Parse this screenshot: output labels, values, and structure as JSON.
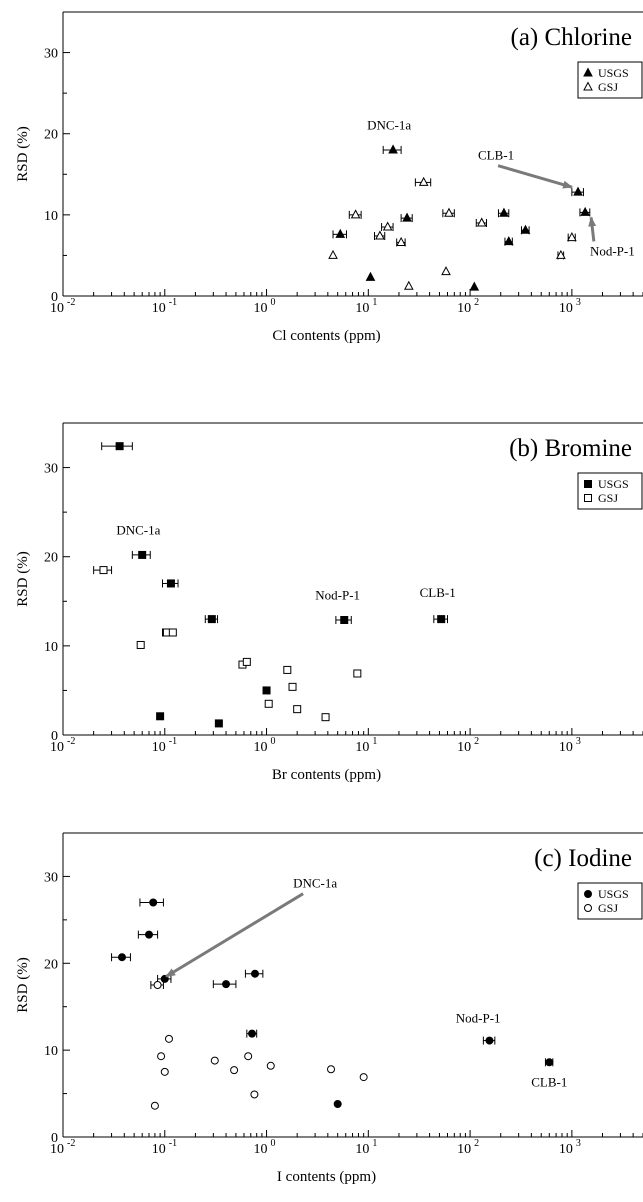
{
  "chart_data": [
    {
      "type": "scatter",
      "title": "(a) Chlorine",
      "xlabel": "Cl contents (ppm)",
      "ylabel": "RSD (%)",
      "xscale": "log",
      "xlim": [
        0.01,
        5000
      ],
      "ylim": [
        0,
        35
      ],
      "xticks": [
        {
          "v": 0.01,
          "e": "-2"
        },
        {
          "v": 0.1,
          "e": "-1"
        },
        {
          "v": 1,
          "e": "0"
        },
        {
          "v": 10,
          "e": "1"
        },
        {
          "v": 100,
          "e": "2"
        },
        {
          "v": 1000,
          "e": "3"
        }
      ],
      "yticks": [
        0,
        10,
        20,
        30
      ],
      "tick_base": "10",
      "legend": {
        "position": "top-right",
        "entries": [
          "USGS",
          "GSJ"
        ]
      },
      "markers": {
        "USGS": "triangle-filled",
        "GSJ": "triangle-open"
      },
      "series": [
        {
          "name": "USGS",
          "points": [
            {
              "x": 5.3,
              "y": 7.6,
              "e": 0.8
            },
            {
              "x": 10.5,
              "y": 2.3
            },
            {
              "x": 17.5,
              "y": 18.0,
              "e": 3.5
            },
            {
              "x": 24,
              "y": 9.6,
              "e": 3
            },
            {
              "x": 110,
              "y": 1.1
            },
            {
              "x": 215,
              "y": 10.2,
              "e": 25
            },
            {
              "x": 240,
              "y": 6.7,
              "e": 20
            },
            {
              "x": 350,
              "y": 8.1,
              "e": 30
            },
            {
              "x": 1150,
              "y": 12.8,
              "e": 150
            },
            {
              "x": 1350,
              "y": 10.3,
              "e": 150
            }
          ]
        },
        {
          "name": "GSJ",
          "points": [
            {
              "x": 4.5,
              "y": 5.0
            },
            {
              "x": 7.5,
              "y": 10.0,
              "e": 1
            },
            {
              "x": 13,
              "y": 7.4,
              "e": 1.5
            },
            {
              "x": 15.5,
              "y": 8.5,
              "e": 2
            },
            {
              "x": 21,
              "y": 6.6,
              "e": 2
            },
            {
              "x": 25,
              "y": 1.2
            },
            {
              "x": 35,
              "y": 14.0,
              "e": 6
            },
            {
              "x": 58,
              "y": 3.0
            },
            {
              "x": 62,
              "y": 10.2,
              "e": 8
            },
            {
              "x": 130,
              "y": 9.0,
              "e": 15
            },
            {
              "x": 780,
              "y": 5.0,
              "e": 50
            },
            {
              "x": 1000,
              "y": 7.2,
              "e": 80
            }
          ]
        }
      ],
      "annotations": [
        {
          "text": "DNC-1a",
          "x": 17.5,
          "y": 18.0,
          "lx": 16,
          "ly": 20.5
        },
        {
          "text": "CLB-1",
          "x": 1150,
          "y": 12.8,
          "lx": 180,
          "ly": 16.8,
          "arrow": true
        },
        {
          "text": "Nod-P-1",
          "x": 1350,
          "y": 10.3,
          "lx": 2500,
          "ly": 5.0,
          "arrow": true
        }
      ]
    },
    {
      "type": "scatter",
      "title": "(b) Bromine",
      "xlabel": "Br contents (ppm)",
      "ylabel": "RSD (%)",
      "xscale": "log",
      "xlim": [
        0.01,
        5000
      ],
      "ylim": [
        0,
        35
      ],
      "xticks": [
        {
          "v": 0.01,
          "e": "-2"
        },
        {
          "v": 0.1,
          "e": "-1"
        },
        {
          "v": 1,
          "e": "0"
        },
        {
          "v": 10,
          "e": "1"
        },
        {
          "v": 100,
          "e": "2"
        },
        {
          "v": 1000,
          "e": "3"
        }
      ],
      "yticks": [
        0,
        10,
        20,
        30
      ],
      "tick_base": "10",
      "legend": {
        "position": "top-right",
        "entries": [
          "USGS",
          "GSJ"
        ]
      },
      "markers": {
        "USGS": "square-filled",
        "GSJ": "square-open"
      },
      "series": [
        {
          "name": "USGS",
          "points": [
            {
              "x": 0.036,
              "y": 32.4,
              "e": 0.012
            },
            {
              "x": 0.06,
              "y": 20.2,
              "e": 0.012
            },
            {
              "x": 0.09,
              "y": 2.1
            },
            {
              "x": 0.115,
              "y": 17.0,
              "e": 0.02
            },
            {
              "x": 0.29,
              "y": 13.0,
              "e": 0.04
            },
            {
              "x": 0.34,
              "y": 1.3
            },
            {
              "x": 1.0,
              "y": 5.0
            },
            {
              "x": 5.8,
              "y": 12.9,
              "e": 1.0
            },
            {
              "x": 52,
              "y": 13.0,
              "e": 8
            }
          ]
        },
        {
          "name": "GSJ",
          "points": [
            {
              "x": 0.025,
              "y": 18.5,
              "e": 0.005
            },
            {
              "x": 0.058,
              "y": 10.1
            },
            {
              "x": 0.105,
              "y": 11.5,
              "e": 0.01
            },
            {
              "x": 0.12,
              "y": 11.5
            },
            {
              "x": 0.58,
              "y": 7.9
            },
            {
              "x": 0.64,
              "y": 8.2
            },
            {
              "x": 1.05,
              "y": 3.5
            },
            {
              "x": 1.6,
              "y": 7.3
            },
            {
              "x": 1.8,
              "y": 5.4
            },
            {
              "x": 2.0,
              "y": 2.9
            },
            {
              "x": 3.8,
              "y": 2.0
            },
            {
              "x": 7.8,
              "y": 6.9
            }
          ]
        }
      ],
      "annotations": [
        {
          "text": "DNC-1a",
          "x": 0.06,
          "y": 20.2,
          "lx": 0.055,
          "ly": 22.5
        },
        {
          "text": "Nod-P-1",
          "x": 5.8,
          "y": 12.9,
          "lx": 5.0,
          "ly": 15.2
        },
        {
          "text": "CLB-1",
          "x": 52,
          "y": 13.0,
          "lx": 48,
          "ly": 15.5
        }
      ]
    },
    {
      "type": "scatter",
      "title": "(c) Iodine",
      "xlabel": "I contents (ppm)",
      "ylabel": "RSD (%)",
      "xscale": "log",
      "xlim": [
        0.01,
        5000
      ],
      "ylim": [
        0,
        35
      ],
      "xticks": [
        {
          "v": 0.01,
          "e": "-2"
        },
        {
          "v": 0.1,
          "e": "-1"
        },
        {
          "v": 1,
          "e": "0"
        },
        {
          "v": 10,
          "e": "1"
        },
        {
          "v": 100,
          "e": "2"
        },
        {
          "v": 1000,
          "e": "3"
        }
      ],
      "yticks": [
        0,
        10,
        20,
        30
      ],
      "tick_base": "10",
      "legend": {
        "position": "top-right",
        "entries": [
          "USGS",
          "GSJ"
        ]
      },
      "markers": {
        "USGS": "circle-filled",
        "GSJ": "circle-open"
      },
      "series": [
        {
          "name": "USGS",
          "points": [
            {
              "x": 0.038,
              "y": 20.7,
              "e": 0.008
            },
            {
              "x": 0.07,
              "y": 23.3,
              "e": 0.015
            },
            {
              "x": 0.077,
              "y": 27.0,
              "e": 0.02
            },
            {
              "x": 0.1,
              "y": 18.2,
              "e": 0.015
            },
            {
              "x": 0.4,
              "y": 17.6,
              "e": 0.1
            },
            {
              "x": 0.72,
              "y": 11.9,
              "e": 0.08
            },
            {
              "x": 0.77,
              "y": 18.8,
              "e": 0.15
            },
            {
              "x": 5.0,
              "y": 3.8
            },
            {
              "x": 155,
              "y": 11.1,
              "e": 20
            },
            {
              "x": 600,
              "y": 8.6,
              "e": 50
            }
          ]
        },
        {
          "name": "GSJ",
          "points": [
            {
              "x": 0.08,
              "y": 3.6
            },
            {
              "x": 0.085,
              "y": 17.5,
              "e": 0.012
            },
            {
              "x": 0.092,
              "y": 9.3
            },
            {
              "x": 0.1,
              "y": 7.5
            },
            {
              "x": 0.11,
              "y": 11.3
            },
            {
              "x": 0.31,
              "y": 8.8
            },
            {
              "x": 0.48,
              "y": 7.7
            },
            {
              "x": 0.66,
              "y": 9.3
            },
            {
              "x": 0.76,
              "y": 4.9
            },
            {
              "x": 1.1,
              "y": 8.2
            },
            {
              "x": 4.3,
              "y": 7.8
            },
            {
              "x": 9.0,
              "y": 6.9
            }
          ]
        }
      ],
      "annotations": [
        {
          "text": "DNC-1a",
          "x": 0.09,
          "y": 17.9,
          "lx": 3.0,
          "ly": 28.7,
          "arrow": true
        },
        {
          "text": "Nod-P-1",
          "x": 155,
          "y": 11.1,
          "lx": 120,
          "ly": 13.2
        },
        {
          "text": "CLB-1",
          "x": 600,
          "y": 8.6,
          "lx": 600,
          "ly": 5.8
        }
      ]
    }
  ]
}
